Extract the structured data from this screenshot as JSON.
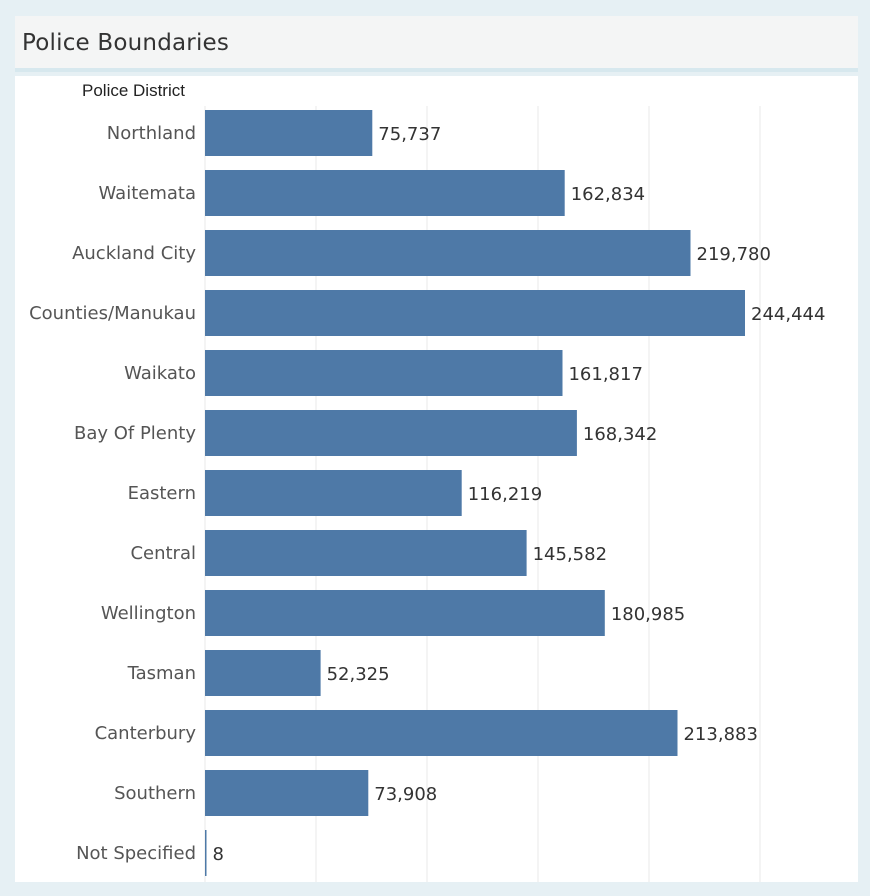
{
  "title": "Police Boundaries",
  "colors": {
    "bar": "#4e79a7",
    "grid": "#e9e9e9",
    "panel_bg": "#ffffff",
    "frame_bg": "#e6f0f4"
  },
  "chart_data": {
    "type": "bar",
    "orientation": "horizontal",
    "row_header": "Police District",
    "categories": [
      "Northland",
      "Waitemata",
      "Auckland City",
      "Counties/Manukau",
      "Waikato",
      "Bay Of Plenty",
      "Eastern",
      "Central",
      "Wellington",
      "Tasman",
      "Canterbury",
      "Southern",
      "Not Specified"
    ],
    "values": [
      75737,
      162834,
      219780,
      244444,
      161817,
      168342,
      116219,
      145582,
      180985,
      52325,
      213883,
      73908,
      8
    ],
    "value_labels": [
      "75,737",
      "162,834",
      "219,780",
      "244,444",
      "161,817",
      "168,342",
      "116,219",
      "145,582",
      "180,985",
      "52,325",
      "213,883",
      "73,908",
      "8"
    ],
    "xlim": [
      0,
      260000
    ],
    "grid": true,
    "xlabel": "",
    "ylabel": ""
  }
}
